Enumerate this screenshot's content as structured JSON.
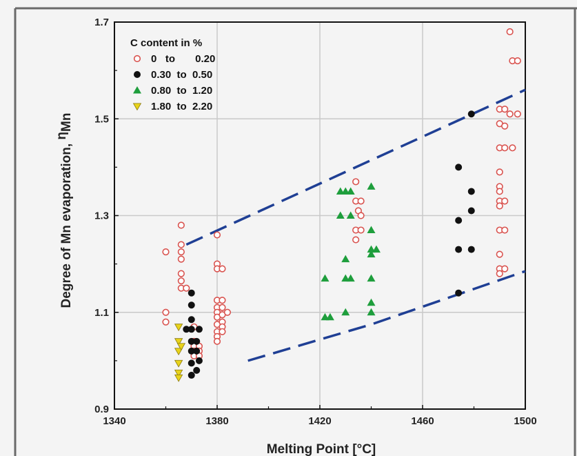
{
  "chart_data": {
    "type": "scatter",
    "xlabel": "Melting Point [°C]",
    "ylabel": "Degree of Mn evaporation, ",
    "ylabel_symbol": "η",
    "ylabel_subscript": "Mn",
    "xlim": [
      1340,
      1500
    ],
    "ylim": [
      0.9,
      1.7
    ],
    "xticks": [
      1340,
      1380,
      1420,
      1460,
      1500
    ],
    "yticks": [
      0.9,
      1.1,
      1.3,
      1.5,
      1.7
    ],
    "xtick_labels": [
      "1340",
      "1380",
      "1420",
      "1460",
      "1500"
    ],
    "ytick_labels": [
      "0.9",
      "1.1",
      "1.3",
      "1.5",
      "1.7"
    ],
    "grid": true,
    "legend_position": "top-left",
    "legend_title": "C  content in %",
    "series": [
      {
        "name": "0   to       0.20",
        "marker": "open-circle",
        "color": "#d9534f",
        "points": [
          [
            1360,
            1.225
          ],
          [
            1360,
            1.1
          ],
          [
            1360,
            1.08
          ],
          [
            1366,
            1.28
          ],
          [
            1366,
            1.24
          ],
          [
            1366,
            1.225
          ],
          [
            1366,
            1.21
          ],
          [
            1366,
            1.18
          ],
          [
            1366,
            1.165
          ],
          [
            1366,
            1.15
          ],
          [
            1368,
            1.15
          ],
          [
            1371,
            1.07
          ],
          [
            1371,
            1.04
          ],
          [
            1371,
            1.03
          ],
          [
            1371,
            1.02
          ],
          [
            1371,
            1.01
          ],
          [
            1373,
            1.03
          ],
          [
            1373,
            1.02
          ],
          [
            1373,
            1.01
          ],
          [
            1380,
            1.26
          ],
          [
            1380,
            1.2
          ],
          [
            1380,
            1.19
          ],
          [
            1380,
            1.125
          ],
          [
            1380,
            1.11
          ],
          [
            1380,
            1.1
          ],
          [
            1380,
            1.09
          ],
          [
            1380,
            1.075
          ],
          [
            1380,
            1.06
          ],
          [
            1380,
            1.05
          ],
          [
            1380,
            1.04
          ],
          [
            1382,
            1.19
          ],
          [
            1382,
            1.125
          ],
          [
            1382,
            1.11
          ],
          [
            1382,
            1.095
          ],
          [
            1382,
            1.08
          ],
          [
            1382,
            1.07
          ],
          [
            1382,
            1.06
          ],
          [
            1384,
            1.1
          ],
          [
            1434,
            1.37
          ],
          [
            1434,
            1.33
          ],
          [
            1434,
            1.27
          ],
          [
            1434,
            1.25
          ],
          [
            1435,
            1.31
          ],
          [
            1436,
            1.33
          ],
          [
            1436,
            1.3
          ],
          [
            1436,
            1.27
          ],
          [
            1494,
            1.68
          ],
          [
            1495,
            1.62
          ],
          [
            1497,
            1.62
          ],
          [
            1490,
            1.52
          ],
          [
            1490,
            1.49
          ],
          [
            1490,
            1.44
          ],
          [
            1490,
            1.39
          ],
          [
            1490,
            1.36
          ],
          [
            1490,
            1.35
          ],
          [
            1490,
            1.33
          ],
          [
            1490,
            1.32
          ],
          [
            1490,
            1.27
          ],
          [
            1490,
            1.22
          ],
          [
            1490,
            1.19
          ],
          [
            1490,
            1.18
          ],
          [
            1492,
            1.52
          ],
          [
            1492,
            1.485
          ],
          [
            1492,
            1.44
          ],
          [
            1492,
            1.33
          ],
          [
            1492,
            1.27
          ],
          [
            1492,
            1.19
          ],
          [
            1494,
            1.51
          ],
          [
            1495,
            1.44
          ],
          [
            1497,
            1.51
          ]
        ]
      },
      {
        "name": "0.30  to  0.50",
        "marker": "filled-circle",
        "color": "#111111",
        "points": [
          [
            1370,
            1.14
          ],
          [
            1370,
            1.115
          ],
          [
            1370,
            1.085
          ],
          [
            1370,
            1.065
          ],
          [
            1370,
            1.04
          ],
          [
            1370,
            1.02
          ],
          [
            1370,
            0.995
          ],
          [
            1370,
            0.97
          ],
          [
            1368,
            1.065
          ],
          [
            1372,
            1.04
          ],
          [
            1372,
            1.02
          ],
          [
            1372,
            0.98
          ],
          [
            1373,
            1.065
          ],
          [
            1373,
            1.0
          ],
          [
            1474,
            1.4
          ],
          [
            1474,
            1.29
          ],
          [
            1474,
            1.23
          ],
          [
            1474,
            1.14
          ],
          [
            1479,
            1.51
          ],
          [
            1479,
            1.35
          ],
          [
            1479,
            1.31
          ],
          [
            1479,
            1.23
          ]
        ]
      },
      {
        "name": "0.80  to  1.20",
        "marker": "filled-triangle-up",
        "color": "#1e9e3c",
        "points": [
          [
            1422,
            1.17
          ],
          [
            1422,
            1.09
          ],
          [
            1424,
            1.09
          ],
          [
            1428,
            1.35
          ],
          [
            1428,
            1.3
          ],
          [
            1430,
            1.35
          ],
          [
            1430,
            1.21
          ],
          [
            1430,
            1.17
          ],
          [
            1430,
            1.1
          ],
          [
            1432,
            1.35
          ],
          [
            1432,
            1.3
          ],
          [
            1432,
            1.17
          ],
          [
            1440,
            1.36
          ],
          [
            1440,
            1.27
          ],
          [
            1440,
            1.23
          ],
          [
            1440,
            1.22
          ],
          [
            1440,
            1.17
          ],
          [
            1440,
            1.12
          ],
          [
            1440,
            1.1
          ],
          [
            1442,
            1.23
          ]
        ]
      },
      {
        "name": "1.80  to  2.20",
        "marker": "filled-triangle-down",
        "color": "#e8d31a",
        "points": [
          [
            1365,
            1.07
          ],
          [
            1365,
            1.04
          ],
          [
            1365,
            1.02
          ],
          [
            1365,
            0.995
          ],
          [
            1365,
            0.975
          ],
          [
            1365,
            0.965
          ],
          [
            1366,
            1.03
          ]
        ]
      }
    ],
    "bounds": [
      {
        "name": "upper-bound",
        "color": "#1f3f94",
        "points": [
          [
            1368,
            1.24
          ],
          [
            1500,
            1.56
          ]
        ]
      },
      {
        "name": "lower-bound",
        "color": "#1f3f94",
        "points": [
          [
            1392,
            1.0
          ],
          [
            1440,
            1.075
          ],
          [
            1500,
            1.185
          ]
        ]
      }
    ]
  }
}
